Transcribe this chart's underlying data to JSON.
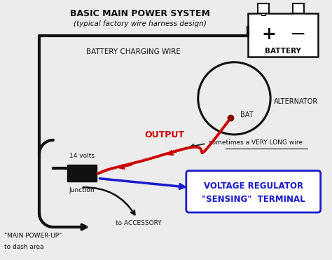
{
  "title": "BASIC MAIN POWER SYSTEM",
  "subtitle": "(typical factory wire harness design)",
  "bg_color": "#ececec",
  "battery_label": "BATTERY",
  "battery_charging_wire_label": "BATTERY CHARGING WIRE",
  "alternator_label": "ALTERNATOR",
  "bat_label": "BAT",
  "output_label": "OUTPUT",
  "sometimes_label": "sometimes a VERY LONG wire",
  "junction_label": "Junction",
  "volts_label": "14 volts",
  "accessory_label": "to ACCESSORY",
  "main_power_label": "\"MAIN POWER-UP\"",
  "dash_label": "to dash area",
  "vr_line1": "VOLTAGE REGULATOR",
  "vr_line2": "\"SENSING\"  TERMINAL",
  "red_color": "#cc0000",
  "blue_color": "#1a1acc",
  "black_color": "#111111"
}
